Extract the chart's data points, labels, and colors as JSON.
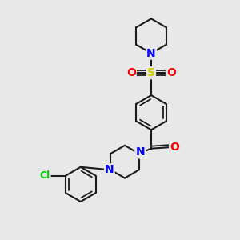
{
  "background_color": "#e8e8e8",
  "bond_color": "#1a1a1a",
  "bond_width": 1.5,
  "N_color": "#0000ff",
  "O_color": "#ff0000",
  "S_color": "#cccc00",
  "Cl_color": "#00cc00",
  "fig_width": 3.0,
  "fig_height": 3.0,
  "dpi": 100,
  "xlim": [
    0,
    10
  ],
  "ylim": [
    0,
    10
  ]
}
